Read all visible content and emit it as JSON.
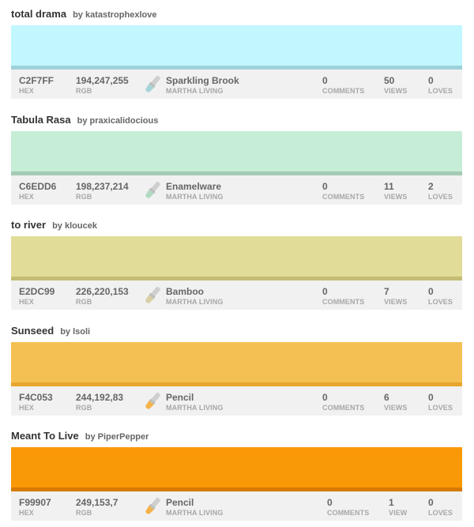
{
  "labels": {
    "hex": "HEX",
    "rgb": "RGB",
    "comments": "COMMENTS",
    "loves": "LOVES",
    "by_prefix": "by"
  },
  "colors": [
    {
      "title": "total drama",
      "author": "katastrophexlove",
      "hex": "C2F7FF",
      "rgb": "194,247,255",
      "paint_name": "Sparkling Brook",
      "paint_brand": "MARTHA LIVING",
      "comments": "0",
      "views": "50",
      "views_label": "VIEWS",
      "loves": "0",
      "swatch": "#c2f7ff",
      "shade": "#9ed2db",
      "brush_tip": "#a7d4d8"
    },
    {
      "title": "Tabula Rasa",
      "author": "praxicalidocious",
      "hex": "C6EDD6",
      "rgb": "198,237,214",
      "paint_name": "Enamelware",
      "paint_brand": "MARTHA LIVING",
      "comments": "0",
      "views": "11",
      "views_label": "VIEWS",
      "loves": "2",
      "swatch": "#c6edd6",
      "shade": "#a3cab4",
      "brush_tip": "#b0dac2"
    },
    {
      "title": "to river",
      "author": "kloucek",
      "hex": "E2DC99",
      "rgb": "226,220,153",
      "paint_name": "Bamboo",
      "paint_brand": "MARTHA LIVING",
      "comments": "0",
      "views": "7",
      "views_label": "VIEWS",
      "loves": "0",
      "swatch": "#e2dc99",
      "shade": "#c4bd73",
      "brush_tip": "#d8cfa3"
    },
    {
      "title": "Sunseed",
      "author": "lsoli",
      "hex": "F4C053",
      "rgb": "244,192,83",
      "paint_name": "Pencil",
      "paint_brand": "MARTHA LIVING",
      "comments": "0",
      "views": "6",
      "views_label": "VIEWS",
      "loves": "0",
      "swatch": "#f4c053",
      "shade": "#e8a52c",
      "brush_tip": "#f4b34a"
    },
    {
      "title": "Meant To Live",
      "author": "PiperPepper",
      "hex": "F99907",
      "rgb": "249,153,7",
      "paint_name": "Pencil",
      "paint_brand": "MARTHA LIVING",
      "comments": "0",
      "views": "1",
      "views_label": "VIEW",
      "loves": "0",
      "swatch": "#f99907",
      "shade": "#d67a00",
      "brush_tip": "#f4b34a"
    }
  ]
}
